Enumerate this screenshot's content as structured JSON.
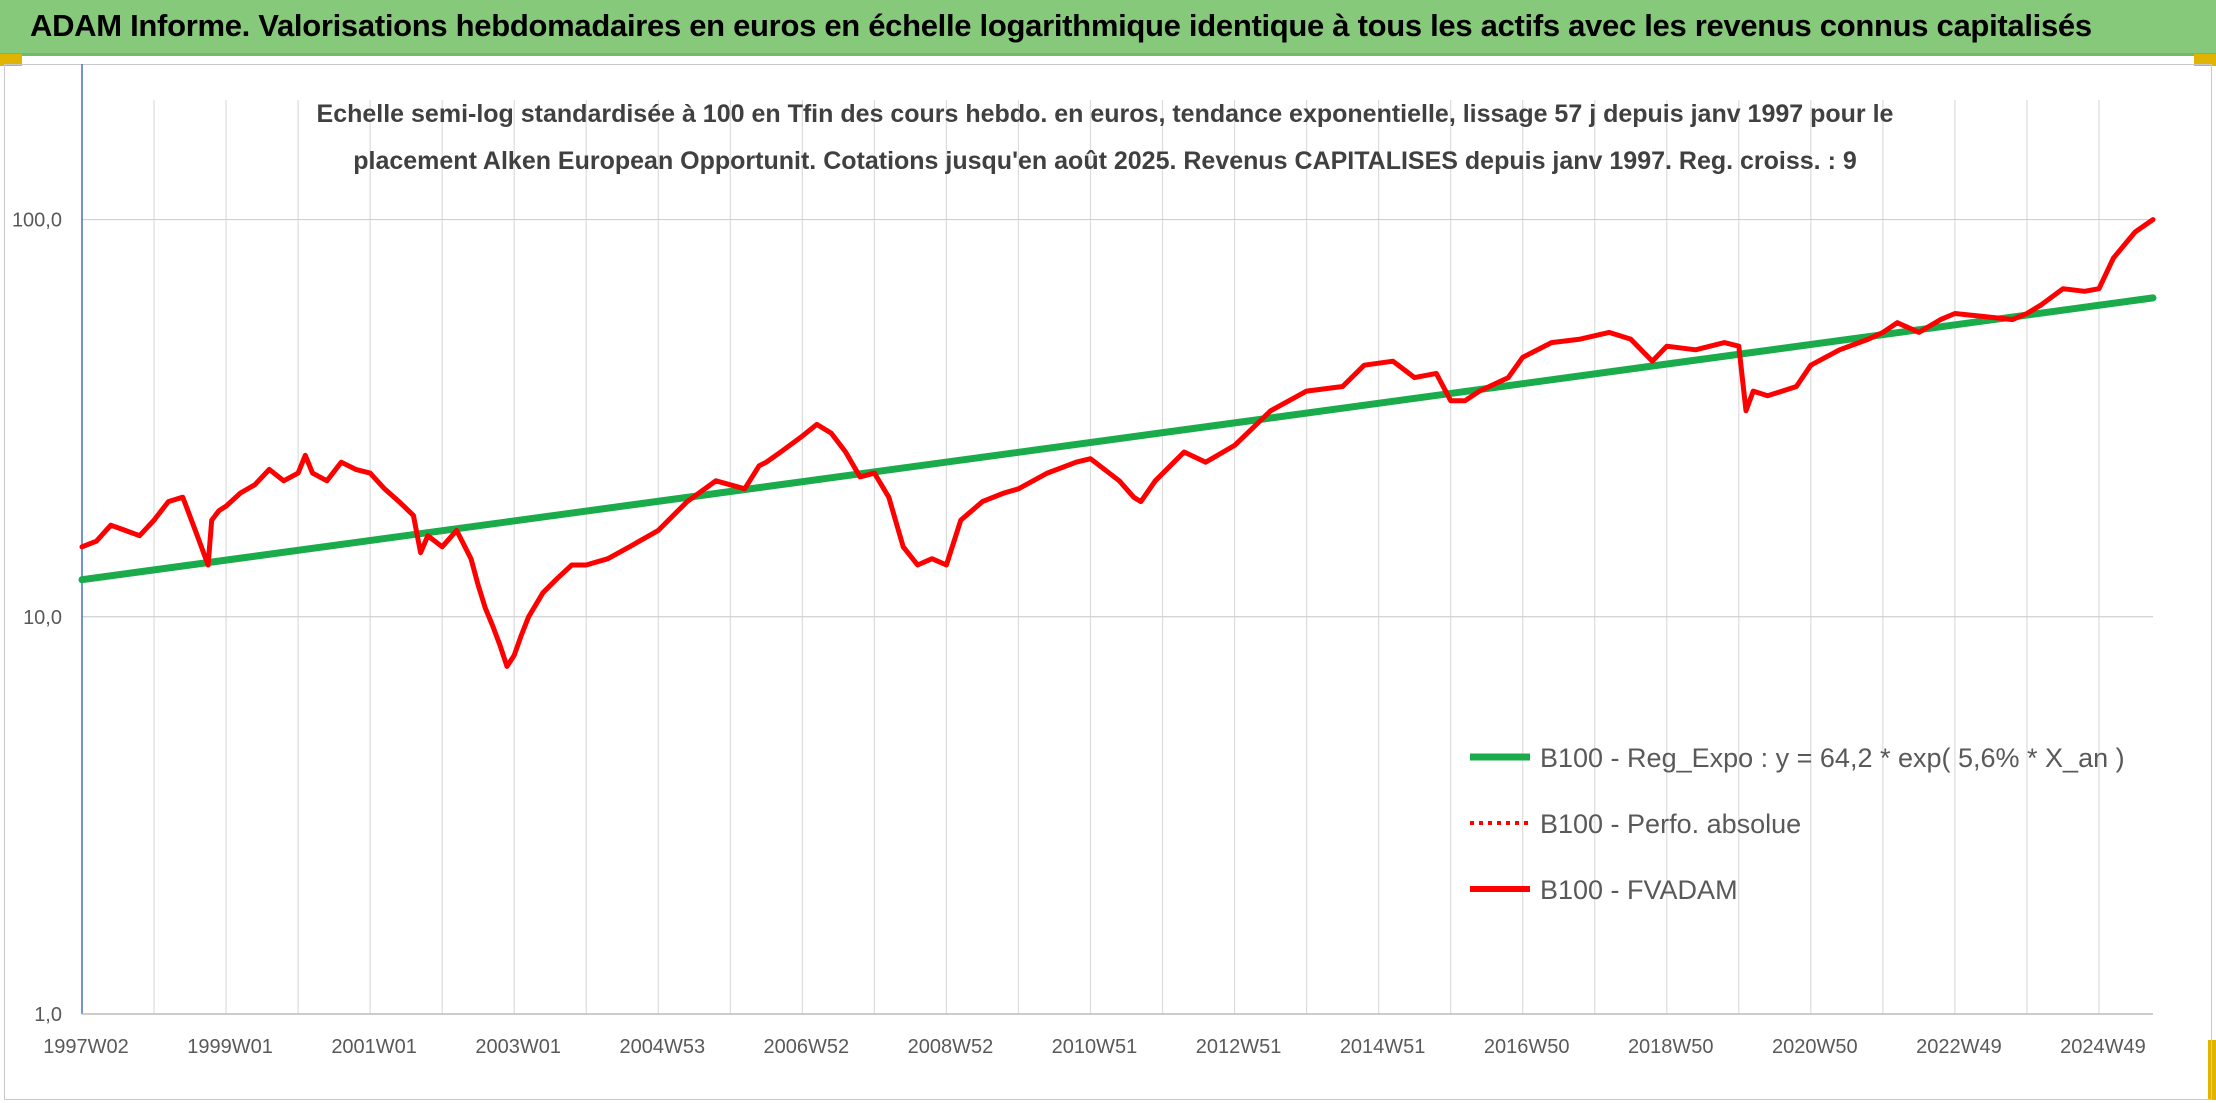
{
  "header": {
    "title": "ADAM Informe. Valorisations hebdomadaires en euros en échelle logarithmique identique à tous les actifs avec les revenus connus capitalisés"
  },
  "colors": {
    "header_bg": "#86c97a",
    "regression": "#1aab4a",
    "perf": "#ff0000",
    "fvadam": "#ff0000"
  },
  "chart_data": {
    "type": "line",
    "title_lines": [
      "Echelle semi-log standardisée à 100 en Tfin des cours hebdo. en euros, tendance exponentielle, lissage 57 j depuis janv 1997 pour le",
      "placement Alken European Opportunit. Cotations jusqu'en août 2025. Revenus CAPITALISES depuis janv 1997. Reg. croiss. : 9"
    ],
    "y_scale": "log",
    "ylim": [
      1,
      200
    ],
    "y_ticks": [
      {
        "value": 1,
        "label": "1,0"
      },
      {
        "value": 10,
        "label": "10,0"
      },
      {
        "value": 100,
        "label": "100,0"
      }
    ],
    "xlim": [
      1997.0,
      2025.75
    ],
    "x_ticks": [
      {
        "value": 1997.0,
        "label": "1997W02"
      },
      {
        "value": 1999.0,
        "label": "1999W01"
      },
      {
        "value": 2001.0,
        "label": "2001W01"
      },
      {
        "value": 2003.0,
        "label": "2003W01"
      },
      {
        "value": 2005.0,
        "label": "2004W53"
      },
      {
        "value": 2007.0,
        "label": "2006W52"
      },
      {
        "value": 2009.0,
        "label": "2008W52"
      },
      {
        "value": 2011.0,
        "label": "2010W51"
      },
      {
        "value": 2013.0,
        "label": "2012W51"
      },
      {
        "value": 2015.0,
        "label": "2014W51"
      },
      {
        "value": 2017.0,
        "label": "2016W50"
      },
      {
        "value": 2019.0,
        "label": "2018W50"
      },
      {
        "value": 2021.0,
        "label": "2020W50"
      },
      {
        "value": 2023.0,
        "label": "2022W49"
      },
      {
        "value": 2025.0,
        "label": "2024W49"
      }
    ],
    "grid": "vertical",
    "legend_position": "bottom-right",
    "series": [
      {
        "name": "B100 - Reg_Expo : y = 64,2 * exp( 5,6% *  X_an )",
        "style": "solid-green",
        "x": [
          1997.0,
          2025.75
        ],
        "y": [
          12.4,
          63.5
        ]
      },
      {
        "name": "B100 - Perfo. absolue",
        "style": "dotted-red",
        "x": [],
        "y": []
      },
      {
        "name": "B100 - FVADAM",
        "style": "solid-red",
        "x": [
          1997.0,
          1997.2,
          1997.4,
          1997.6,
          1997.8,
          1998.0,
          1998.2,
          1998.4,
          1998.6,
          1998.75,
          1998.8,
          1998.9,
          1999.0,
          1999.2,
          1999.4,
          1999.6,
          1999.8,
          2000.0,
          2000.1,
          2000.2,
          2000.4,
          2000.6,
          2000.8,
          2001.0,
          2001.2,
          2001.4,
          2001.6,
          2001.7,
          2001.8,
          2002.0,
          2002.2,
          2002.4,
          2002.5,
          2002.6,
          2002.7,
          2002.8,
          2002.9,
          2003.0,
          2003.1,
          2003.2,
          2003.4,
          2003.6,
          2003.8,
          2004.0,
          2004.3,
          2004.6,
          2005.0,
          2005.4,
          2005.8,
          2006.2,
          2006.4,
          2006.5,
          2006.7,
          2007.0,
          2007.2,
          2007.4,
          2007.6,
          2007.8,
          2008.0,
          2008.2,
          2008.4,
          2008.6,
          2008.8,
          2009.0,
          2009.2,
          2009.5,
          2009.8,
          2010.0,
          2010.4,
          2010.8,
          2011.0,
          2011.4,
          2011.6,
          2011.7,
          2011.9,
          2012.3,
          2012.6,
          2013.0,
          2013.5,
          2014.0,
          2014.5,
          2014.8,
          2015.2,
          2015.5,
          2015.8,
          2016.0,
          2016.2,
          2016.4,
          2016.8,
          2017.0,
          2017.4,
          2017.8,
          2018.2,
          2018.5,
          2018.8,
          2019.0,
          2019.4,
          2019.8,
          2020.0,
          2020.1,
          2020.2,
          2020.4,
          2020.8,
          2021.0,
          2021.4,
          2021.8,
          2022.0,
          2022.2,
          2022.5,
          2022.8,
          2023.0,
          2023.4,
          2023.8,
          2024.0,
          2024.2,
          2024.5,
          2024.8,
          2025.0,
          2025.2,
          2025.5,
          2025.75
        ],
        "y": [
          15.0,
          15.5,
          17.0,
          16.5,
          16.0,
          17.5,
          19.5,
          20.0,
          16.0,
          13.5,
          17.5,
          18.5,
          19.0,
          20.5,
          21.5,
          23.5,
          22.0,
          23.0,
          25.5,
          23.0,
          22.0,
          24.5,
          23.5,
          23.0,
          21.0,
          19.5,
          18.0,
          14.5,
          16.0,
          15.0,
          16.5,
          14.0,
          12.0,
          10.5,
          9.5,
          8.5,
          7.5,
          8.0,
          9.0,
          10.0,
          11.5,
          12.5,
          13.5,
          13.5,
          14.0,
          15.0,
          16.5,
          19.5,
          22.0,
          21.0,
          24.0,
          24.5,
          26.0,
          28.5,
          30.5,
          29.0,
          26.0,
          22.5,
          23.0,
          20.0,
          15.0,
          13.5,
          14.0,
          13.5,
          17.5,
          19.5,
          20.5,
          21.0,
          23.0,
          24.5,
          25.0,
          22.0,
          20.0,
          19.5,
          22.0,
          26.0,
          24.5,
          27.0,
          33.0,
          37.0,
          38.0,
          43.0,
          44.0,
          40.0,
          41.0,
          35.0,
          35.0,
          37.0,
          40.0,
          45.0,
          49.0,
          50.0,
          52.0,
          50.0,
          44.0,
          48.0,
          47.0,
          49.0,
          48.0,
          33.0,
          37.0,
          36.0,
          38.0,
          43.0,
          47.0,
          50.0,
          52.0,
          55.0,
          52.0,
          56.0,
          58.0,
          57.0,
          56.0,
          58.0,
          61.0,
          67.0,
          66.0,
          67.0,
          80.0,
          93.0,
          100.0
        ]
      }
    ]
  }
}
